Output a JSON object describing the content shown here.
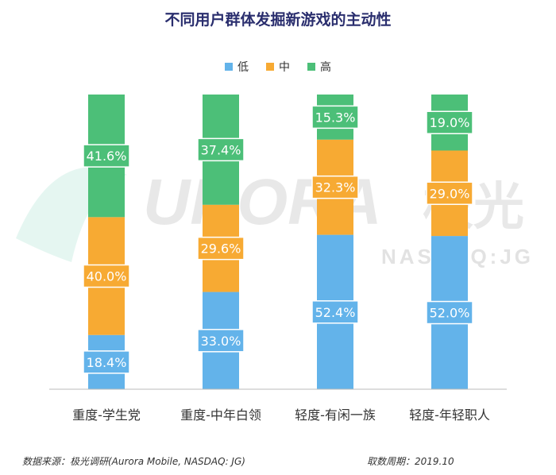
{
  "header": {
    "title": "不同用户群体发掘新游戏的主动性"
  },
  "footer": {
    "source": "数据来源：极光调研(Aurora Mobile, NASDAQ: JG)",
    "period": "取数周期：2019.10"
  },
  "watermark": {
    "brand": "URORA",
    "brand_cn": "极光",
    "ticker": "NASDAQ:JG"
  },
  "colors": {
    "low": "#63b3ea",
    "mid": "#f7aa33",
    "high": "#4cbf78"
  },
  "chart_data": {
    "type": "bar",
    "stacked": true,
    "categories": [
      "重度-学生党",
      "重度-中年白领",
      "轻度-有闲一族",
      "轻度-年轻职人"
    ],
    "series": [
      {
        "name": "低",
        "values": [
          18.4,
          33.0,
          52.4,
          52.0
        ],
        "labels": [
          "18.4%",
          "33.0%",
          "52.4%",
          "52.0%"
        ]
      },
      {
        "name": "中",
        "values": [
          40.0,
          29.6,
          32.3,
          29.0
        ],
        "labels": [
          "40.0%",
          "29.6%",
          "32.3%",
          "29.0%"
        ]
      },
      {
        "name": "高",
        "values": [
          41.6,
          37.4,
          15.3,
          19.0
        ],
        "labels": [
          "41.6%",
          "37.4%",
          "15.3%",
          "19.0%"
        ]
      }
    ],
    "legend_position": "top-center",
    "grid": false
  }
}
